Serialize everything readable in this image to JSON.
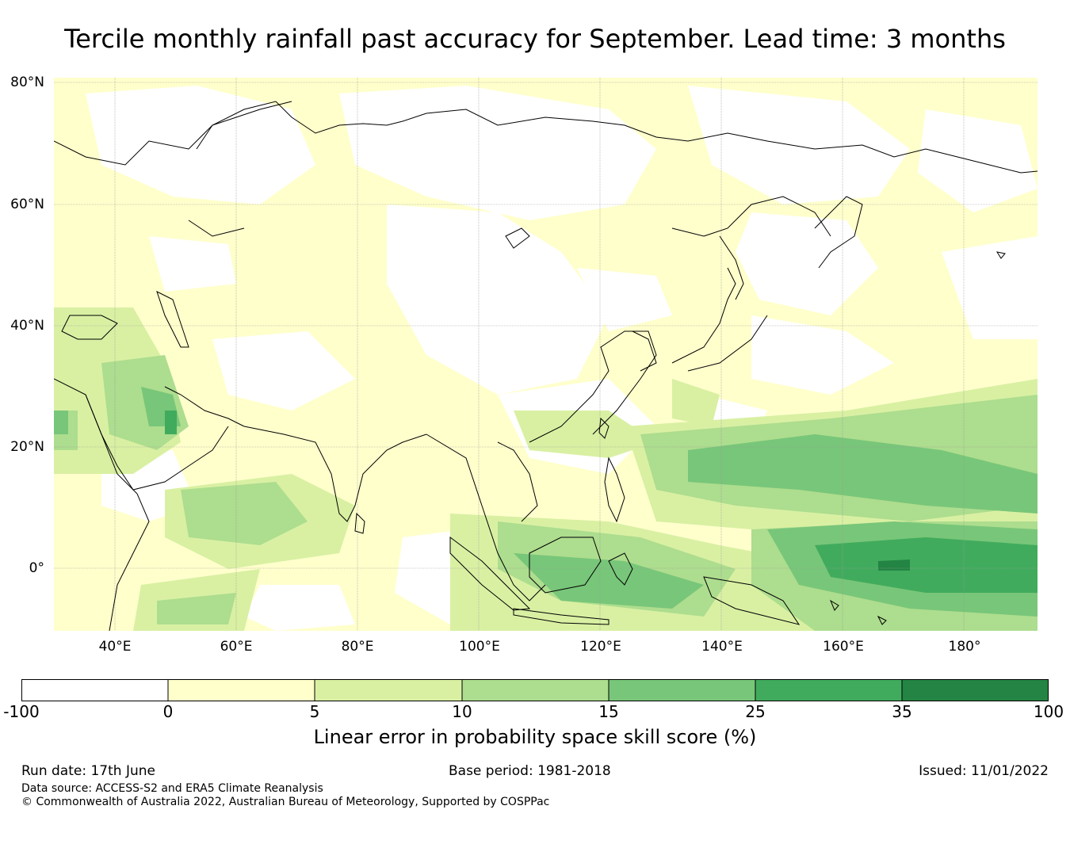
{
  "title": "Tercile monthly rainfall past accuracy for September. Lead time: 3 months",
  "map": {
    "lat_labels": [
      "80°N",
      "60°N",
      "40°N",
      "20°N",
      "0°"
    ],
    "lon_labels": [
      "40°E",
      "60°E",
      "80°E",
      "100°E",
      "120°E",
      "140°E",
      "160°E",
      "180°"
    ]
  },
  "colorbar": {
    "ticks": [
      "-100",
      "0",
      "5",
      "10",
      "15",
      "25",
      "35",
      "100"
    ],
    "colors": [
      "#ffffff",
      "#ffffcc",
      "#d9f0a3",
      "#addd8e",
      "#78c679",
      "#41ab5d",
      "#238443"
    ],
    "label": "Linear error in probability space skill score (%)"
  },
  "footer": {
    "run_date": "Run date: 17th June",
    "base_period": "Base period: 1981-2018",
    "issued": "Issued: 11/01/2022",
    "data_source": "Data source: ACCESS-S2 and ERA5 Climate Reanalysis",
    "copyright": "© Commonwealth of Australia 2022, Australian Bureau of Meteorology, Supported by COSPPac"
  }
}
